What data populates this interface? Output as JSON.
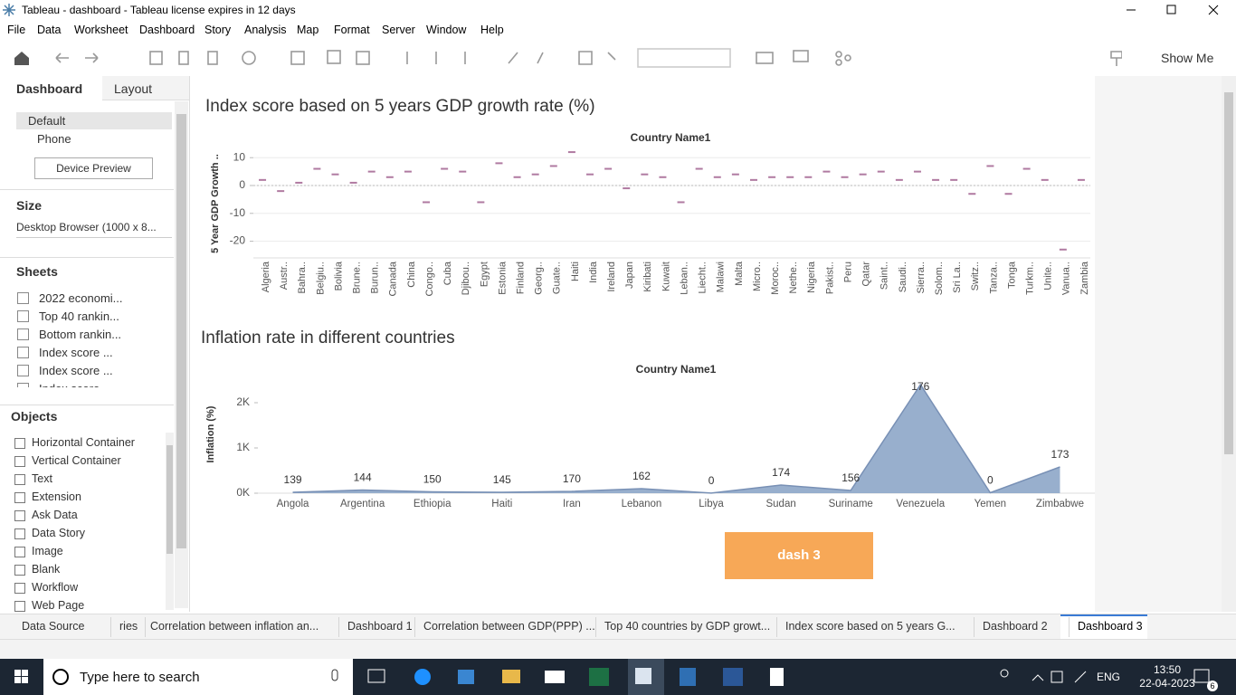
{
  "window": {
    "title": "Tableau - dashboard - Tableau license expires in 12 days"
  },
  "menu": [
    "File",
    "Data",
    "Worksheet",
    "Dashboard",
    "Story",
    "Analysis",
    "Map",
    "Format",
    "Server",
    "Window",
    "Help"
  ],
  "toolbar": {
    "show_me": "Show Me"
  },
  "side_panel": {
    "tabs": [
      "Dashboard",
      "Layout"
    ],
    "devices": [
      "Default",
      "Phone"
    ],
    "device_preview": "Device Preview",
    "size_heading": "Size",
    "size_value": "Desktop Browser (1000 x 8...",
    "sheets_heading": "Sheets",
    "sheets": [
      "2022 economi...",
      "Top  40 rankin...",
      "Bottom rankin...",
      "Index score ...",
      "Index score ...",
      "Index score"
    ],
    "objects_heading": "Objects",
    "objects": [
      "Horizontal Container",
      "Vertical Container",
      "Text",
      "Extension",
      "Ask Data",
      "Data Story",
      "Image",
      "Blank",
      "Workflow",
      "Web Page"
    ]
  },
  "chart_data": [
    {
      "type": "gantt",
      "title": "Index score based on 5 years GDP growth rate (%)",
      "x_label": "Country Name1",
      "y_label": "5 Year GDP Growth ..",
      "categories": [
        "Algeria",
        "Austr..",
        "Bahra..",
        "Belgiu..",
        "Bolivia",
        "Brune..",
        "Burun..",
        "Canada",
        "China",
        "Congo..",
        "Cuba",
        "Djibou..",
        "Egypt",
        "Estonia",
        "Finland",
        "Georg..",
        "Guate..",
        "Haiti",
        "India",
        "Ireland",
        "Japan",
        "Kiribati",
        "Kuwait",
        "Leban..",
        "Liecht..",
        "Malawi",
        "Malta",
        "Micro..",
        "Moroc..",
        "Nethe..",
        "Nigeria",
        "Pakist..",
        "Peru",
        "Qatar",
        "Saint..",
        "Saudi..",
        "Sierra..",
        "Solom..",
        "Sri La..",
        "Switz..",
        "Tanza..",
        "Tonga",
        "Turkm..",
        "Unite..",
        "Vanua..",
        "Zambia"
      ],
      "values": [
        2,
        -2,
        1,
        6,
        4,
        1,
        5,
        3,
        5,
        -6,
        6,
        5,
        -6,
        8,
        3,
        4,
        7,
        12,
        4,
        6,
        -1,
        4,
        3,
        -6,
        6,
        3,
        4,
        2,
        3,
        3,
        3,
        5,
        3,
        4,
        5,
        2,
        5,
        2,
        2,
        -3,
        7,
        -3,
        6,
        2,
        -23,
        2
      ],
      "color": "#b07aa1",
      "ylim": [
        -26,
        13
      ],
      "yticks": [
        10,
        0,
        -10,
        -20
      ],
      "grid": true
    },
    {
      "type": "area",
      "title": "Inflation rate in different countries",
      "x_label": "Country Name1",
      "y_label": "Inflation (%)",
      "categories": [
        "Angola",
        "Argentina",
        "Ethiopia",
        "Haiti",
        "Iran",
        "Lebanon",
        "Libya",
        "Sudan",
        "Suriname",
        "Venezuela",
        "Yemen",
        "Zimbabwe"
      ],
      "values": [
        20,
        70,
        30,
        20,
        40,
        100,
        3,
        180,
        60,
        2400,
        10,
        580
      ],
      "label_values": [
        139,
        144,
        150,
        145,
        170,
        162,
        0,
        174,
        156,
        176,
        0,
        173
      ],
      "color": "#8da6c8",
      "ylim": [
        0,
        2500
      ],
      "yticks": [
        {
          "value": 0,
          "label": "0K"
        },
        {
          "value": 1000,
          "label": "1K"
        },
        {
          "value": 2000,
          "label": "2K"
        }
      ],
      "grid": false
    }
  ],
  "button": "dash 3",
  "sheet_tabs": [
    "Data Source",
    "ries",
    "Correlation between inflation an...",
    "Dashboard 1",
    "Correlation between GDP(PPP) ...",
    "Top 40 countries by GDP growt...",
    "Index score based on 5 years G...",
    "Dashboard 2",
    "Dashboard 3"
  ],
  "taskbar": {
    "search": "Type here to search",
    "language": "ENG",
    "time": "13:50",
    "date": "22-04-2023",
    "notifications": 6
  }
}
